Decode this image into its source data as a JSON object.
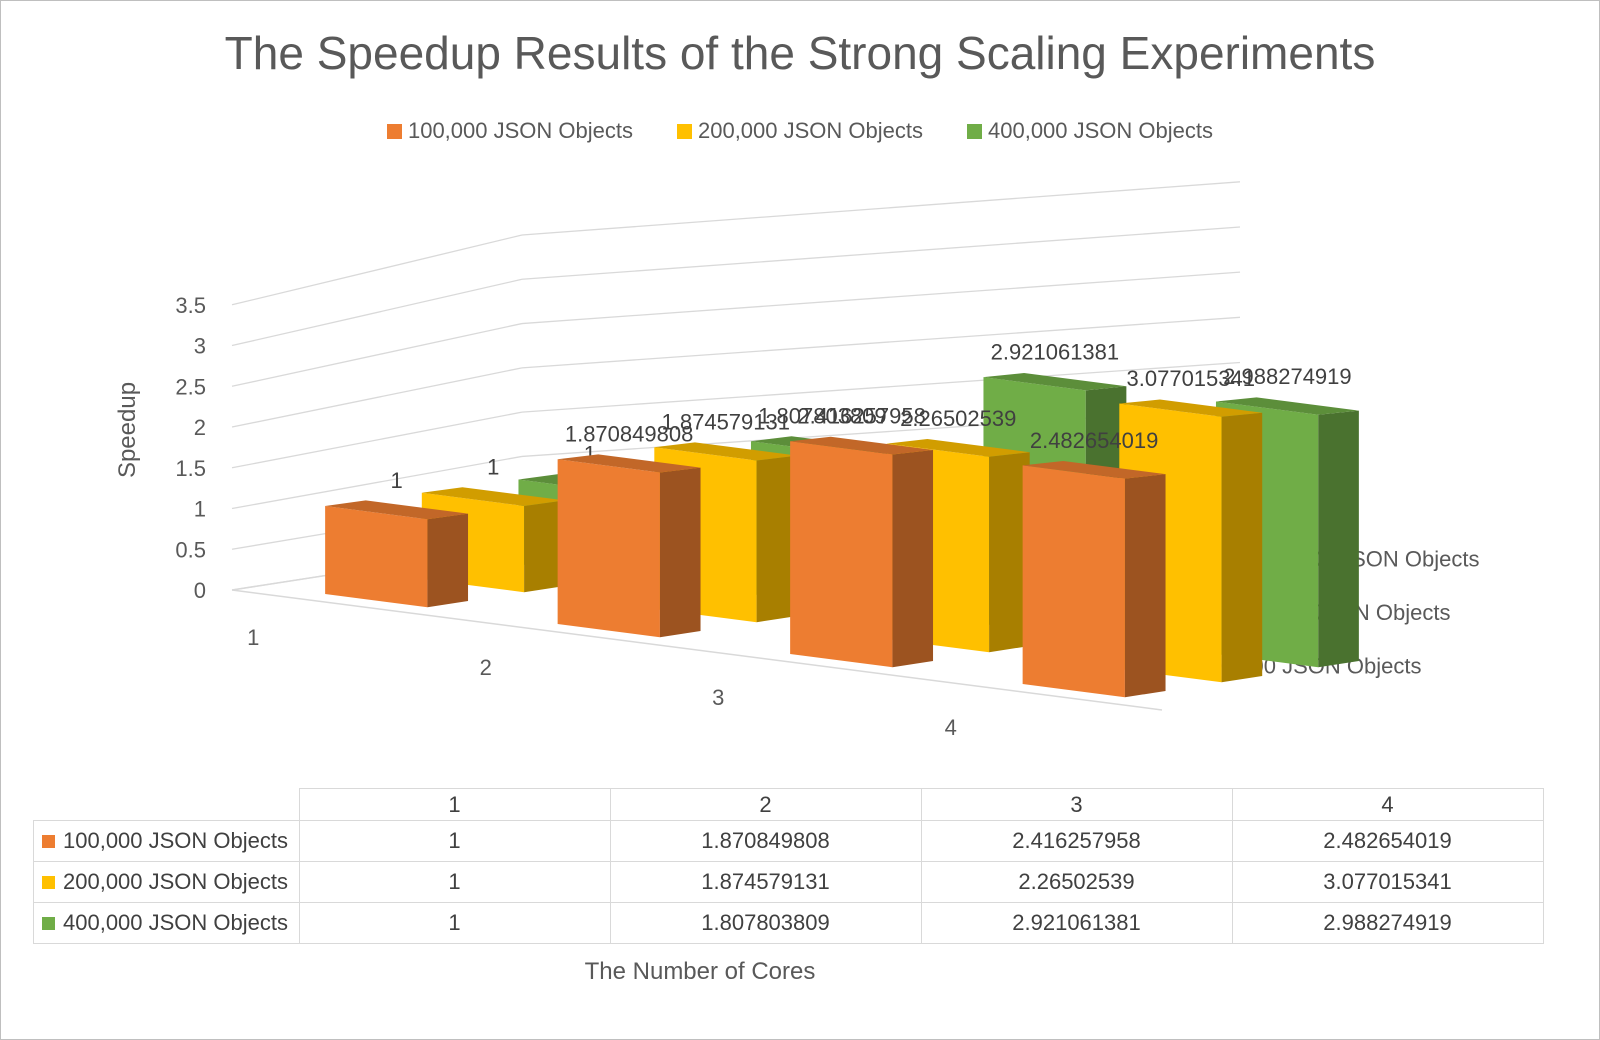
{
  "chart_data": {
    "type": "bar",
    "subtype": "3d-column",
    "title": "The Speedup Results of the Strong Scaling Experiments",
    "xlabel": "The Number of Cores",
    "ylabel": "Speedup",
    "ylim": [
      0,
      3.5
    ],
    "yticks": [
      "0",
      "0.5",
      "1",
      "1.5",
      "2",
      "2.5",
      "3",
      "3.5"
    ],
    "categories": [
      "1",
      "2",
      "3",
      "4"
    ],
    "legend_position": "top",
    "gridlines": true,
    "series": [
      {
        "name": "100,000 JSON Objects",
        "color": "#ED7D31",
        "values": [
          1,
          1.870849808,
          2.416257958,
          2.482654019
        ],
        "labels": [
          "1",
          "1.870849808",
          "2.416257958",
          "2.482654019"
        ]
      },
      {
        "name": "200,000 JSON Objects",
        "color": "#FFC000",
        "values": [
          1,
          1.874579131,
          2.26502539,
          3.077015341
        ],
        "labels": [
          "1",
          "1.874579131",
          "2.26502539",
          "3.077015341"
        ]
      },
      {
        "name": "400,000 JSON Objects",
        "color": "#70AD47",
        "values": [
          1,
          1.807803809,
          2.921061381,
          2.988274919
        ],
        "labels": [
          "1",
          "1.807803809",
          "2.921061381",
          "2.988274919"
        ]
      }
    ],
    "data_table": true
  }
}
